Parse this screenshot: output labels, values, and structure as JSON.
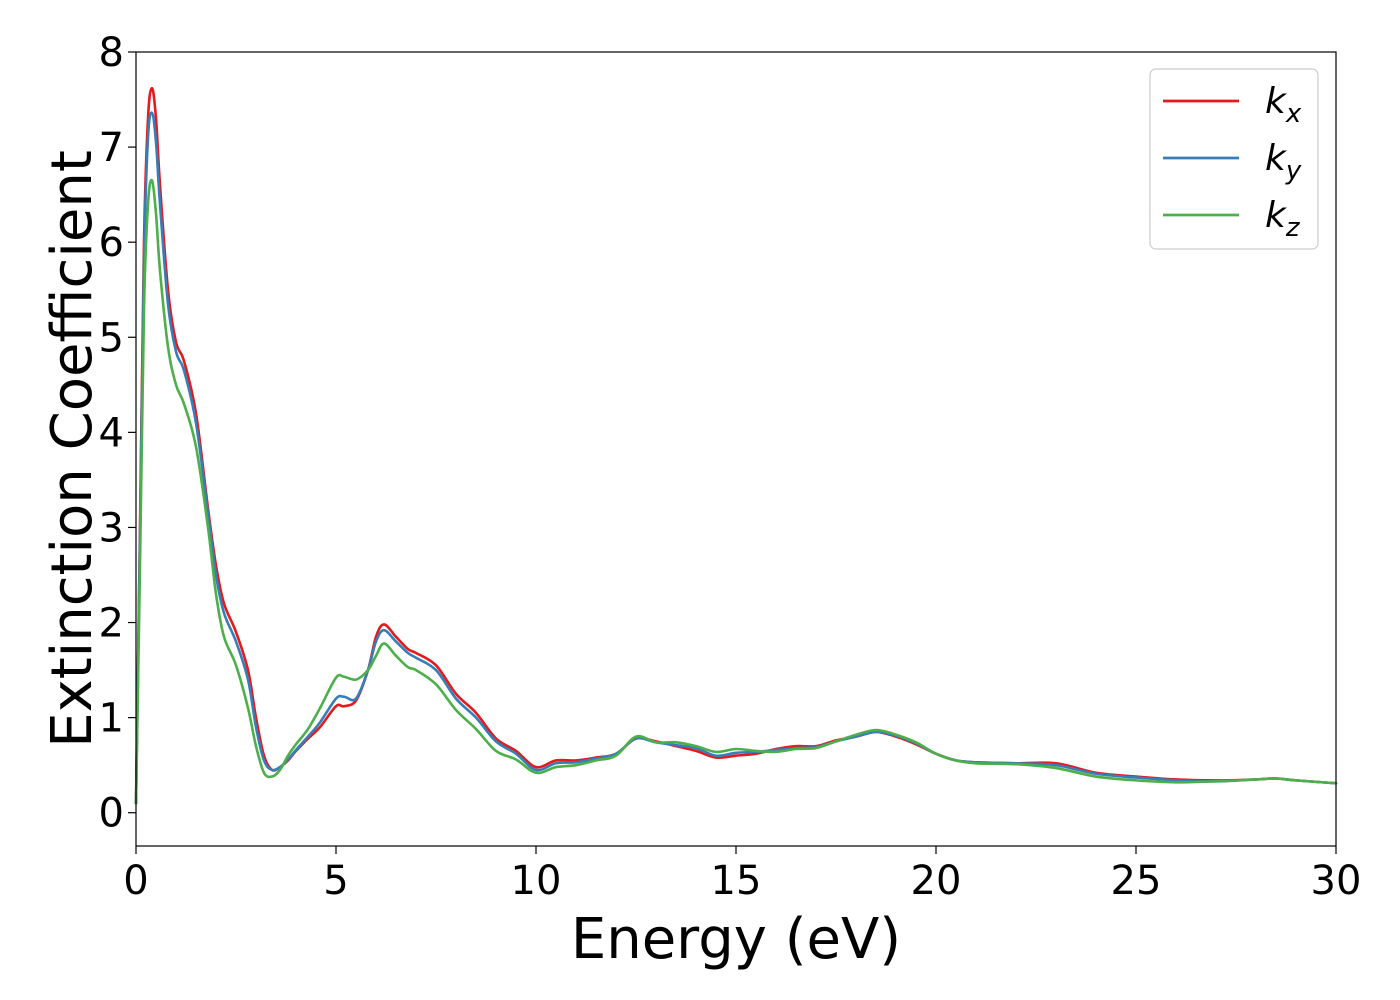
{
  "chart_data": {
    "type": "line",
    "title": "",
    "xlabel": "Energy (eV)",
    "ylabel": "Extinction Coefficient",
    "xlim": [
      0,
      30
    ],
    "ylim": [
      -0.35,
      8
    ],
    "xticks": [
      0,
      5,
      10,
      15,
      20,
      25,
      30
    ],
    "yticks": [
      0,
      1,
      2,
      3,
      4,
      5,
      6,
      7,
      8
    ],
    "grid": false,
    "legend": "top-right",
    "series": [
      {
        "name": "k",
        "subscript": "x",
        "color": "#e41a1c",
        "x": [
          0,
          0.1,
          0.2,
          0.3,
          0.4,
          0.5,
          0.6,
          0.8,
          1.0,
          1.2,
          1.5,
          1.8,
          2.0,
          2.2,
          2.5,
          2.8,
          3.0,
          3.2,
          3.4,
          3.6,
          3.8,
          4.0,
          4.3,
          4.6,
          5.0,
          5.2,
          5.5,
          5.8,
          6.0,
          6.2,
          6.5,
          6.8,
          7.0,
          7.5,
          8.0,
          8.5,
          9.0,
          9.5,
          10.0,
          10.5,
          11.0,
          11.5,
          12.0,
          12.5,
          13.0,
          13.5,
          14.0,
          14.5,
          15.0,
          15.5,
          16.0,
          16.5,
          17.0,
          17.5,
          18.0,
          18.5,
          19.0,
          19.5,
          20.0,
          20.5,
          21.0,
          22.0,
          23.0,
          24.0,
          25.0,
          26.0,
          27.0,
          28.0,
          28.5,
          29.0,
          30.0
        ],
        "y": [
          0.1,
          3.0,
          6.0,
          7.3,
          7.62,
          7.3,
          6.6,
          5.5,
          4.95,
          4.75,
          4.2,
          3.2,
          2.6,
          2.2,
          1.9,
          1.5,
          1.0,
          0.6,
          0.45,
          0.48,
          0.55,
          0.65,
          0.78,
          0.9,
          1.12,
          1.12,
          1.18,
          1.5,
          1.85,
          1.98,
          1.85,
          1.72,
          1.68,
          1.55,
          1.25,
          1.05,
          0.78,
          0.65,
          0.48,
          0.55,
          0.55,
          0.58,
          0.62,
          0.78,
          0.75,
          0.7,
          0.65,
          0.58,
          0.6,
          0.62,
          0.67,
          0.7,
          0.7,
          0.76,
          0.8,
          0.85,
          0.8,
          0.72,
          0.62,
          0.55,
          0.53,
          0.52,
          0.52,
          0.42,
          0.38,
          0.35,
          0.34,
          0.35,
          0.36,
          0.34,
          0.31
        ]
      },
      {
        "name": "k",
        "subscript": "y",
        "color": "#377eb8",
        "x": [
          0,
          0.1,
          0.2,
          0.3,
          0.4,
          0.5,
          0.6,
          0.8,
          1.0,
          1.2,
          1.5,
          1.8,
          2.0,
          2.2,
          2.5,
          2.8,
          3.0,
          3.2,
          3.4,
          3.6,
          3.8,
          4.0,
          4.3,
          4.6,
          5.0,
          5.2,
          5.5,
          5.8,
          6.0,
          6.2,
          6.5,
          6.8,
          7.0,
          7.5,
          8.0,
          8.5,
          9.0,
          9.5,
          10.0,
          10.5,
          11.0,
          11.5,
          12.0,
          12.5,
          13.0,
          13.5,
          14.0,
          14.5,
          15.0,
          15.5,
          16.0,
          16.5,
          17.0,
          17.5,
          18.0,
          18.5,
          19.0,
          19.5,
          20.0,
          20.5,
          21.0,
          22.0,
          23.0,
          24.0,
          25.0,
          26.0,
          27.0,
          28.0,
          28.5,
          29.0,
          30.0
        ],
        "y": [
          0.1,
          2.9,
          5.8,
          7.1,
          7.36,
          7.05,
          6.4,
          5.35,
          4.85,
          4.65,
          4.1,
          3.15,
          2.5,
          2.1,
          1.8,
          1.4,
          0.9,
          0.55,
          0.45,
          0.48,
          0.56,
          0.66,
          0.8,
          0.95,
          1.2,
          1.22,
          1.2,
          1.5,
          1.8,
          1.92,
          1.8,
          1.68,
          1.63,
          1.5,
          1.2,
          1.0,
          0.75,
          0.62,
          0.45,
          0.52,
          0.53,
          0.57,
          0.62,
          0.78,
          0.74,
          0.71,
          0.68,
          0.6,
          0.63,
          0.64,
          0.66,
          0.68,
          0.69,
          0.75,
          0.8,
          0.85,
          0.81,
          0.73,
          0.62,
          0.55,
          0.53,
          0.52,
          0.5,
          0.41,
          0.37,
          0.34,
          0.33,
          0.35,
          0.36,
          0.34,
          0.31
        ]
      },
      {
        "name": "k",
        "subscript": "z",
        "color": "#4daf4a",
        "x": [
          0,
          0.1,
          0.2,
          0.3,
          0.4,
          0.5,
          0.6,
          0.8,
          1.0,
          1.2,
          1.5,
          1.8,
          2.0,
          2.2,
          2.5,
          2.8,
          3.0,
          3.2,
          3.4,
          3.6,
          3.8,
          4.0,
          4.3,
          4.6,
          5.0,
          5.2,
          5.5,
          5.8,
          6.0,
          6.2,
          6.5,
          6.8,
          7.0,
          7.5,
          8.0,
          8.5,
          9.0,
          9.5,
          10.0,
          10.5,
          11.0,
          11.5,
          12.0,
          12.5,
          13.0,
          13.5,
          14.0,
          14.5,
          15.0,
          15.5,
          16.0,
          16.5,
          17.0,
          17.5,
          18.0,
          18.5,
          19.0,
          19.5,
          20.0,
          20.5,
          21.0,
          22.0,
          23.0,
          24.0,
          25.0,
          26.0,
          27.0,
          28.0,
          28.5,
          29.0,
          30.0
        ],
        "y": [
          0.1,
          2.6,
          5.3,
          6.4,
          6.65,
          6.3,
          5.7,
          4.9,
          4.5,
          4.3,
          3.85,
          3.0,
          2.3,
          1.85,
          1.55,
          1.1,
          0.7,
          0.42,
          0.38,
          0.45,
          0.6,
          0.72,
          0.88,
          1.1,
          1.42,
          1.43,
          1.4,
          1.5,
          1.65,
          1.78,
          1.65,
          1.53,
          1.5,
          1.35,
          1.08,
          0.88,
          0.65,
          0.56,
          0.42,
          0.48,
          0.5,
          0.55,
          0.6,
          0.8,
          0.74,
          0.74,
          0.7,
          0.64,
          0.67,
          0.65,
          0.64,
          0.67,
          0.68,
          0.75,
          0.82,
          0.87,
          0.82,
          0.74,
          0.62,
          0.55,
          0.52,
          0.51,
          0.47,
          0.38,
          0.34,
          0.32,
          0.33,
          0.35,
          0.36,
          0.34,
          0.31
        ]
      }
    ]
  }
}
